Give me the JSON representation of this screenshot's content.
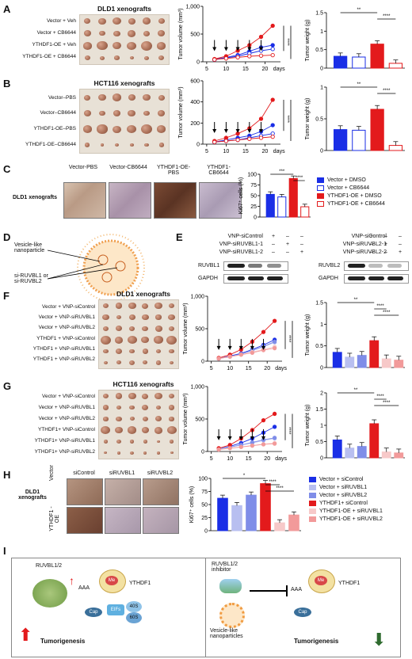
{
  "panels": {
    "A": {
      "letter": "A",
      "title": "DLD1 xenografts",
      "rows": [
        "Vector + Veh",
        "Vector + CB6644",
        "YTHDF1-OE + Veh",
        "YTHDF1-OE + CB6644"
      ]
    },
    "B": {
      "letter": "B",
      "title": "HCT116 xenografts",
      "rows": [
        "Vector–PBS",
        "Vector–CB6644",
        "YTHDF1-OE–PBS",
        "YTHDF1-OE–CB6644"
      ]
    },
    "C": {
      "letter": "C",
      "xeno": "DLD1 xenografts",
      "ihc": [
        "Vector-PBS",
        "Vector-CB6644",
        "YTHDF1-OE-PBS",
        "YTHDF1-CB6644"
      ],
      "legend": [
        "Vector + DMSO",
        "Vector + CB6644",
        "YTHDF1-OE + DMSO",
        "YTHDF1-OE + CB6644"
      ]
    },
    "D": {
      "letter": "D",
      "np_label": "Vesicle-like nanoparticle",
      "si_label": "si-RUVBL1 or si-RUVBL2"
    },
    "E": {
      "letter": "E",
      "left": {
        "conds": [
          "VNP-siControl",
          "VNP-siRUVBL1-1",
          "VNP-siRUVBL1-2"
        ],
        "marks": [
          [
            "+",
            "–",
            "–"
          ],
          [
            "–",
            "+",
            "–"
          ],
          [
            "–",
            "–",
            "+"
          ]
        ],
        "blots": [
          "RUVBL1",
          "GAPDH"
        ]
      },
      "right": {
        "conds": [
          "VNP-siControl",
          "VNP-siRUVBL2-1",
          "VNP-siRUVBL2-2"
        ],
        "marks": [
          [
            "+",
            "–",
            "–"
          ],
          [
            "–",
            "+",
            "–"
          ],
          [
            "–",
            "–",
            "+"
          ]
        ],
        "blots": [
          "RUVBL2",
          "GAPDH"
        ]
      }
    },
    "F": {
      "letter": "F",
      "title": "DLD1 xenografts",
      "rows": [
        "Vector + VNP-siControl",
        "Vector + VNP-siRUVBL1",
        "Vector + VNP-siRUVBL2",
        "YTHDF1 + VNP-siControl",
        "YTHDF1 + VNP-siRUVBL1",
        "YTHDF1 + VNP-siRUVBL2"
      ]
    },
    "G": {
      "letter": "G",
      "title": "HCT116 xenografts",
      "rows": [
        "Vector + VNP-siControl",
        "Vector + VNP-siRUVBL1",
        "Vector + VNP-siRUVBL2",
        "YTHDF1+ VNP-siControl",
        "YTHDF1+ VNP-siRUVBL1",
        "YTHDF1+ VNP-siRUVBL2"
      ]
    },
    "H": {
      "letter": "H",
      "xeno": "DLD1 xenografts",
      "cols": [
        "siControl",
        "siRUVBL1",
        "siRUVBL2"
      ],
      "rowlabels": [
        "Vector",
        "YTHDF1 -OE"
      ],
      "legend": [
        "Vector + siControl",
        "Vector + siRUVBL1",
        "Vector + siRUVBL2",
        "YTHDF1+ siControl",
        "YTHDF1-OE + siRUVBL1",
        "YTHDF1-OE + siRUVBL2"
      ]
    },
    "I": {
      "letter": "I",
      "ruvbl": "RUVBL1/2",
      "aaa": "AAA",
      "me": "Me",
      "ythdf1": "YTHDF1",
      "eifs": "EIFs",
      "s40": "40S",
      "s60": "60S",
      "cap": "Cap",
      "tumor_left": "Tumorigenesis",
      "inhibitor": "RUVBL1/2 inhibitor",
      "vnp": "Vesicle-like nanoparticles",
      "tumor_right": "Tumorigenesis"
    }
  },
  "axis": {
    "tv": "Tumor volume (mm³)",
    "tw": "Tumor weight (g)",
    "ki67": "Ki67⁺ cells (%)",
    "days": "days"
  },
  "colors": {
    "vec": "#1a2ee6",
    "vec_drug": "#ffffff",
    "oe": "#e31a1c",
    "oe_drug": "#ffffff",
    "light1": "#b8bff0",
    "light2": "#7f8de8",
    "pink1": "#f7c9c9",
    "pink2": "#f29a9a"
  },
  "chart_data": [
    {
      "type": "line",
      "panel": "A",
      "x": [
        7,
        10,
        13,
        16,
        19,
        22
      ],
      "xticks": [
        5,
        10,
        15,
        20
      ],
      "ylim": [
        0,
        1000
      ],
      "yticks": [
        0,
        500,
        1000
      ],
      "ylabel": "Tumor volume (mm³)",
      "series": [
        {
          "values": [
            40,
            80,
            120,
            190,
            260,
            300
          ]
        },
        {
          "values": [
            40,
            70,
            100,
            150,
            200,
            230
          ]
        },
        {
          "values": [
            50,
            100,
            200,
            300,
            450,
            650
          ]
        },
        {
          "values": [
            40,
            60,
            80,
            100,
            110,
            120
          ]
        }
      ],
      "sig": [
        "****",
        "****"
      ]
    },
    {
      "type": "bar",
      "panel": "A",
      "ylim": [
        0,
        1.5
      ],
      "yticks": [
        0,
        0.5,
        1,
        1.5
      ],
      "ylabel": "Tumor weight (g)",
      "values": [
        0.32,
        0.3,
        0.65,
        0.13
      ],
      "sig": [
        "**",
        "****"
      ]
    },
    {
      "type": "line",
      "panel": "B",
      "x": [
        7,
        10,
        13,
        16,
        19,
        22
      ],
      "xticks": [
        5,
        10,
        15,
        20
      ],
      "ylim": [
        0,
        600
      ],
      "yticks": [
        0,
        200,
        400,
        600
      ],
      "ylabel": "Tumor volume (mm³)",
      "series": [
        {
          "values": [
            20,
            40,
            60,
            80,
            120,
            180
          ]
        },
        {
          "values": [
            20,
            30,
            40,
            60,
            80,
            100
          ]
        },
        {
          "values": [
            30,
            60,
            100,
            150,
            240,
            420
          ]
        },
        {
          "values": [
            20,
            30,
            40,
            50,
            60,
            70
          ]
        }
      ],
      "sig": [
        "****",
        "****"
      ]
    },
    {
      "type": "bar",
      "panel": "B",
      "ylim": [
        0,
        1.0
      ],
      "yticks": [
        0,
        0.5,
        1.0
      ],
      "ylabel": "Tumor weight (g)",
      "values": [
        0.33,
        0.32,
        0.65,
        0.08
      ],
      "sig": [
        "**",
        "****"
      ]
    },
    {
      "type": "bar",
      "panel": "C",
      "ylim": [
        0,
        100
      ],
      "yticks": [
        0,
        25,
        50,
        75,
        100
      ],
      "ylabel": "Ki67⁺ cells (%)",
      "values": [
        53,
        47,
        90,
        24
      ],
      "sig": [
        "***",
        "****"
      ]
    },
    {
      "type": "line",
      "panel": "F",
      "x": [
        7,
        10,
        13,
        16,
        19,
        22
      ],
      "xticks": [
        5,
        10,
        15,
        20
      ],
      "ylim": [
        0,
        1000
      ],
      "yticks": [
        0,
        500,
        1000
      ],
      "ylabel": "Tumor volume (mm³)",
      "series": [
        {
          "values": [
            40,
            80,
            120,
            180,
            250,
            330
          ]
        },
        {
          "values": [
            40,
            70,
            110,
            160,
            220,
            290
          ]
        },
        {
          "values": [
            40,
            70,
            110,
            170,
            230,
            300
          ]
        },
        {
          "values": [
            50,
            100,
            180,
            300,
            450,
            620
          ]
        },
        {
          "values": [
            40,
            70,
            100,
            140,
            180,
            220
          ]
        },
        {
          "values": [
            40,
            70,
            100,
            130,
            170,
            200
          ]
        }
      ],
      "sig": [
        "****",
        "****"
      ]
    },
    {
      "type": "bar",
      "panel": "F",
      "ylim": [
        0,
        1.5
      ],
      "yticks": [
        0,
        0.5,
        1,
        1.5
      ],
      "ylabel": "Tumor weight (g)",
      "values": [
        0.35,
        0.24,
        0.28,
        0.62,
        0.2,
        0.17
      ],
      "sig": [
        "**",
        "****",
        "****"
      ]
    },
    {
      "type": "line",
      "panel": "G",
      "x": [
        7,
        10,
        13,
        16,
        19,
        22
      ],
      "xticks": [
        5,
        10,
        15,
        20
      ],
      "ylim": [
        0,
        1000
      ],
      "yticks": [
        0,
        500,
        1000
      ],
      "ylabel": "Tumor volume (mm³)",
      "series": [
        {
          "values": [
            40,
            80,
            130,
            200,
            290,
            380
          ]
        },
        {
          "values": [
            40,
            70,
            100,
            130,
            170,
            200
          ]
        },
        {
          "values": [
            40,
            70,
            100,
            140,
            180,
            210
          ]
        },
        {
          "values": [
            50,
            100,
            200,
            330,
            480,
            580
          ]
        },
        {
          "values": [
            30,
            50,
            70,
            90,
            110,
            130
          ]
        },
        {
          "values": [
            30,
            50,
            70,
            90,
            110,
            120
          ]
        }
      ],
      "sig": [
        "****",
        "****"
      ]
    },
    {
      "type": "bar",
      "panel": "G",
      "ylim": [
        0,
        2.0
      ],
      "yticks": [
        0,
        0.5,
        1,
        1.5,
        2
      ],
      "ylabel": "Tumor weight (g)",
      "values": [
        0.55,
        0.3,
        0.35,
        1.05,
        0.18,
        0.15
      ],
      "sig": [
        "**",
        "****",
        "****"
      ]
    },
    {
      "type": "bar",
      "panel": "H",
      "ylim": [
        0,
        100
      ],
      "yticks": [
        0,
        25,
        50,
        75,
        100
      ],
      "ylabel": "Ki67⁺ cells (%)",
      "values": [
        62,
        48,
        68,
        90,
        15,
        30
      ],
      "sig": [
        "*",
        "****",
        "****"
      ]
    }
  ]
}
